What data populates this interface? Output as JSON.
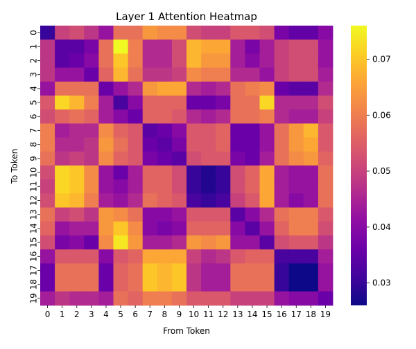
{
  "chart_data": {
    "type": "heatmap",
    "title": "Layer 1 Attention Heatmap",
    "xlabel": "From Token",
    "ylabel": "To Token",
    "x_tick_labels": [
      "0",
      "1",
      "2",
      "3",
      "4",
      "5",
      "6",
      "7",
      "8",
      "9",
      "10",
      "11",
      "12",
      "13",
      "14",
      "15",
      "16",
      "17",
      "18",
      "19"
    ],
    "y_tick_labels": [
      "0",
      "1",
      "2",
      "3",
      "4",
      "5",
      "6",
      "7",
      "8",
      "9",
      "10",
      "11",
      "12",
      "13",
      "14",
      "15",
      "16",
      "17",
      "18",
      "19"
    ],
    "colormap": "plasma",
    "vmin": 0.026,
    "vmax": 0.076,
    "colorbar_ticks": [
      0.03,
      0.04,
      0.05,
      0.06,
      0.07
    ],
    "colorbar_tick_labels": [
      "0.03",
      "0.04",
      "0.05",
      "0.06",
      "0.07"
    ],
    "values": [
      [
        0.03,
        0.05,
        0.052,
        0.048,
        0.042,
        0.058,
        0.058,
        0.064,
        0.062,
        0.062,
        0.052,
        0.05,
        0.05,
        0.054,
        0.054,
        0.052,
        0.038,
        0.035,
        0.035,
        0.04
      ],
      [
        0.048,
        0.034,
        0.034,
        0.038,
        0.058,
        0.076,
        0.06,
        0.046,
        0.046,
        0.052,
        0.068,
        0.066,
        0.066,
        0.044,
        0.038,
        0.044,
        0.05,
        0.052,
        0.052,
        0.042
      ],
      [
        0.048,
        0.034,
        0.036,
        0.04,
        0.058,
        0.07,
        0.06,
        0.046,
        0.046,
        0.052,
        0.068,
        0.064,
        0.064,
        0.044,
        0.04,
        0.044,
        0.05,
        0.052,
        0.052,
        0.042
      ],
      [
        0.048,
        0.042,
        0.042,
        0.036,
        0.056,
        0.068,
        0.058,
        0.048,
        0.048,
        0.05,
        0.062,
        0.06,
        0.06,
        0.046,
        0.046,
        0.042,
        0.05,
        0.052,
        0.052,
        0.044
      ],
      [
        0.042,
        0.058,
        0.058,
        0.058,
        0.036,
        0.042,
        0.046,
        0.064,
        0.066,
        0.066,
        0.046,
        0.044,
        0.046,
        0.058,
        0.06,
        0.062,
        0.036,
        0.034,
        0.034,
        0.046
      ],
      [
        0.054,
        0.072,
        0.068,
        0.06,
        0.044,
        0.032,
        0.04,
        0.056,
        0.056,
        0.056,
        0.036,
        0.036,
        0.038,
        0.058,
        0.058,
        0.072,
        0.046,
        0.046,
        0.046,
        0.052
      ],
      [
        0.052,
        0.056,
        0.058,
        0.056,
        0.044,
        0.04,
        0.036,
        0.056,
        0.056,
        0.054,
        0.046,
        0.044,
        0.046,
        0.058,
        0.058,
        0.06,
        0.046,
        0.044,
        0.044,
        0.05
      ],
      [
        0.06,
        0.044,
        0.046,
        0.046,
        0.062,
        0.056,
        0.054,
        0.034,
        0.036,
        0.04,
        0.054,
        0.054,
        0.056,
        0.036,
        0.036,
        0.042,
        0.058,
        0.064,
        0.068,
        0.054
      ],
      [
        0.06,
        0.046,
        0.046,
        0.048,
        0.064,
        0.058,
        0.054,
        0.036,
        0.034,
        0.038,
        0.054,
        0.054,
        0.056,
        0.036,
        0.036,
        0.042,
        0.058,
        0.064,
        0.066,
        0.054
      ],
      [
        0.058,
        0.048,
        0.05,
        0.048,
        0.062,
        0.056,
        0.054,
        0.038,
        0.036,
        0.034,
        0.052,
        0.054,
        0.054,
        0.038,
        0.036,
        0.044,
        0.058,
        0.062,
        0.064,
        0.056
      ],
      [
        0.052,
        0.072,
        0.07,
        0.062,
        0.042,
        0.036,
        0.044,
        0.056,
        0.056,
        0.052,
        0.03,
        0.028,
        0.03,
        0.052,
        0.056,
        0.066,
        0.044,
        0.042,
        0.042,
        0.058
      ],
      [
        0.05,
        0.072,
        0.07,
        0.062,
        0.042,
        0.04,
        0.044,
        0.056,
        0.056,
        0.052,
        0.03,
        0.028,
        0.03,
        0.052,
        0.056,
        0.066,
        0.044,
        0.042,
        0.042,
        0.058
      ],
      [
        0.052,
        0.07,
        0.068,
        0.06,
        0.044,
        0.042,
        0.046,
        0.058,
        0.056,
        0.054,
        0.032,
        0.03,
        0.032,
        0.05,
        0.054,
        0.066,
        0.044,
        0.04,
        0.042,
        0.058
      ],
      [
        0.058,
        0.05,
        0.052,
        0.048,
        0.064,
        0.062,
        0.058,
        0.04,
        0.04,
        0.042,
        0.054,
        0.054,
        0.054,
        0.034,
        0.04,
        0.046,
        0.058,
        0.06,
        0.06,
        0.054
      ],
      [
        0.056,
        0.042,
        0.044,
        0.044,
        0.064,
        0.07,
        0.062,
        0.04,
        0.038,
        0.04,
        0.056,
        0.056,
        0.056,
        0.04,
        0.034,
        0.042,
        0.056,
        0.06,
        0.06,
        0.052
      ],
      [
        0.052,
        0.038,
        0.04,
        0.036,
        0.062,
        0.074,
        0.064,
        0.044,
        0.044,
        0.046,
        0.064,
        0.062,
        0.064,
        0.042,
        0.042,
        0.034,
        0.052,
        0.054,
        0.054,
        0.048
      ],
      [
        0.042,
        0.054,
        0.054,
        0.054,
        0.04,
        0.054,
        0.056,
        0.066,
        0.066,
        0.066,
        0.05,
        0.046,
        0.048,
        0.054,
        0.056,
        0.056,
        0.032,
        0.032,
        0.032,
        0.044
      ],
      [
        0.036,
        0.058,
        0.058,
        0.058,
        0.036,
        0.056,
        0.058,
        0.07,
        0.068,
        0.07,
        0.048,
        0.044,
        0.044,
        0.058,
        0.058,
        0.058,
        0.03,
        0.026,
        0.026,
        0.042
      ],
      [
        0.036,
        0.058,
        0.058,
        0.058,
        0.036,
        0.056,
        0.058,
        0.07,
        0.068,
        0.07,
        0.048,
        0.044,
        0.044,
        0.058,
        0.058,
        0.058,
        0.03,
        0.026,
        0.026,
        0.042
      ],
      [
        0.044,
        0.048,
        0.046,
        0.046,
        0.044,
        0.058,
        0.056,
        0.06,
        0.06,
        0.058,
        0.054,
        0.054,
        0.054,
        0.05,
        0.05,
        0.05,
        0.042,
        0.04,
        0.04,
        0.036
      ]
    ]
  }
}
